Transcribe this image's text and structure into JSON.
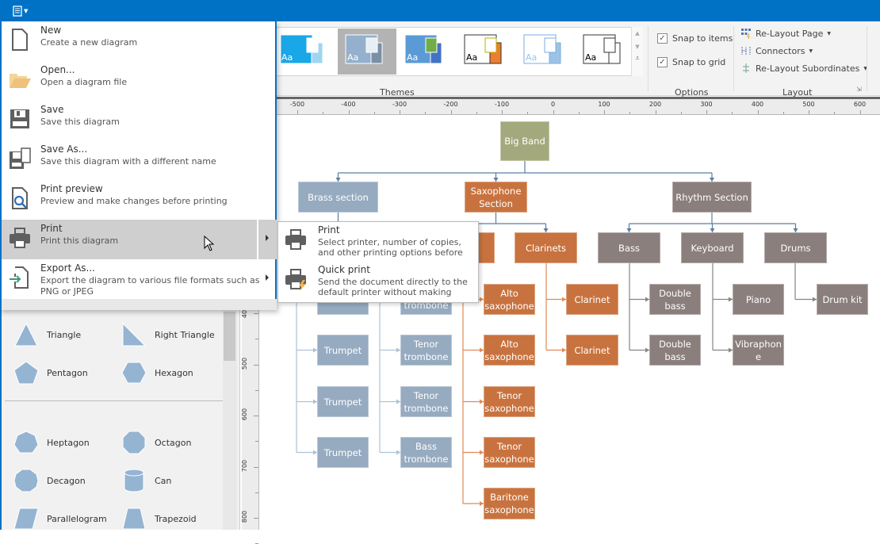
{
  "titlebar": {
    "app_menu_icon": "document-list-icon"
  },
  "ribbon": {
    "themes": {
      "label": "Themes",
      "count": 6,
      "selected_index": 1
    },
    "options": {
      "label": "Options",
      "snap_to_items": {
        "label": "Snap to items",
        "checked": true
      },
      "snap_to_grid": {
        "label": "Snap to grid",
        "checked": true
      }
    },
    "layout": {
      "label": "Layout",
      "relayout_page": "Re-Layout Page",
      "connectors": "Connectors",
      "relayout_subordinates": "Re-Layout Subordinates"
    }
  },
  "rulers": {
    "horizontal": [
      "-500",
      "-400",
      "-300",
      "-200",
      "-100",
      "0",
      "100",
      "200",
      "300",
      "400",
      "500",
      "600"
    ],
    "vertical": [
      "400",
      "500",
      "600",
      "700",
      "800"
    ]
  },
  "menu": {
    "items": [
      {
        "title": "New",
        "desc": "Create a new diagram",
        "icon": "new-document-icon"
      },
      {
        "title": "Open...",
        "desc": "Open a diagram file",
        "icon": "folder-open-icon"
      },
      {
        "title": "Save",
        "desc": "Save this diagram",
        "icon": "save-icon"
      },
      {
        "title": "Save As...",
        "desc": "Save this diagram with a different name",
        "icon": "save-as-icon"
      },
      {
        "title": "Print preview",
        "desc": "Preview and make changes before printing",
        "icon": "print-preview-icon"
      },
      {
        "title": "Print",
        "desc": "Print this diagram",
        "icon": "printer-icon",
        "highlighted": true,
        "submenu": true
      },
      {
        "title": "Export As...",
        "desc": "Export the diagram to various file formats such as PNG or JPEG",
        "icon": "export-icon",
        "submenu": true
      }
    ],
    "submenu": [
      {
        "title": "Print",
        "desc": "Select printer, number of copies, and other printing options before",
        "icon": "printer-icon"
      },
      {
        "title": "Quick print",
        "desc": "Send the document directly to the default printer without making",
        "icon": "quick-print-icon"
      }
    ]
  },
  "shapes": [
    {
      "label": "Triangle"
    },
    {
      "label": "Right Triangle"
    },
    {
      "label": "Pentagon"
    },
    {
      "label": "Hexagon"
    },
    {
      "label": "Heptagon"
    },
    {
      "label": "Octagon"
    },
    {
      "label": "Decagon"
    },
    {
      "label": "Can"
    },
    {
      "label": "Parallelogram"
    },
    {
      "label": "Trapezoid"
    }
  ],
  "colors": {
    "accent": "#0072c6",
    "root": "#a3a97c",
    "brass": "#96abc0",
    "sax": "#c8733f",
    "rhythm": "#8a7f7d"
  },
  "diagram": {
    "nodes": [
      {
        "label": "Big Band",
        "group": "root"
      },
      {
        "label": "Brass section",
        "group": "brass"
      },
      {
        "label": "Saxophone Section",
        "group": "sax"
      },
      {
        "label": "Rhythm Section",
        "group": "rhythm"
      },
      {
        "label": "",
        "group": "brass"
      },
      {
        "label": "",
        "group": "brass"
      },
      {
        "label": "",
        "group": "sax"
      },
      {
        "label": "Clarinets",
        "group": "sax"
      },
      {
        "label": "Bass",
        "group": "rhythm"
      },
      {
        "label": "Keyboard",
        "group": "rhythm"
      },
      {
        "label": "Drums",
        "group": "rhythm"
      },
      {
        "label": "",
        "group": "brass"
      },
      {
        "label": "trombone",
        "group": "brass"
      },
      {
        "label": "Alto saxophone",
        "group": "sax"
      },
      {
        "label": "Clarinet",
        "group": "sax"
      },
      {
        "label": "Double bass",
        "group": "rhythm"
      },
      {
        "label": "Piano",
        "group": "rhythm"
      },
      {
        "label": "Drum kit",
        "group": "rhythm"
      },
      {
        "label": "Trumpet",
        "group": "brass"
      },
      {
        "label": "Tenor trombone",
        "group": "brass"
      },
      {
        "label": "Alto saxophone",
        "group": "sax"
      },
      {
        "label": "Clarinet",
        "group": "sax"
      },
      {
        "label": "Double bass",
        "group": "rhythm"
      },
      {
        "label": "Vibraphone",
        "group": "rhythm"
      },
      {
        "label": "Trumpet",
        "group": "brass"
      },
      {
        "label": "Tenor trombone",
        "group": "brass"
      },
      {
        "label": "Tenor saxophone",
        "group": "sax"
      },
      {
        "label": "Trumpet",
        "group": "brass"
      },
      {
        "label": "Bass trombone",
        "group": "brass"
      },
      {
        "label": "Tenor saxophone",
        "group": "sax"
      },
      {
        "label": "Baritone saxophone",
        "group": "sax"
      }
    ]
  }
}
